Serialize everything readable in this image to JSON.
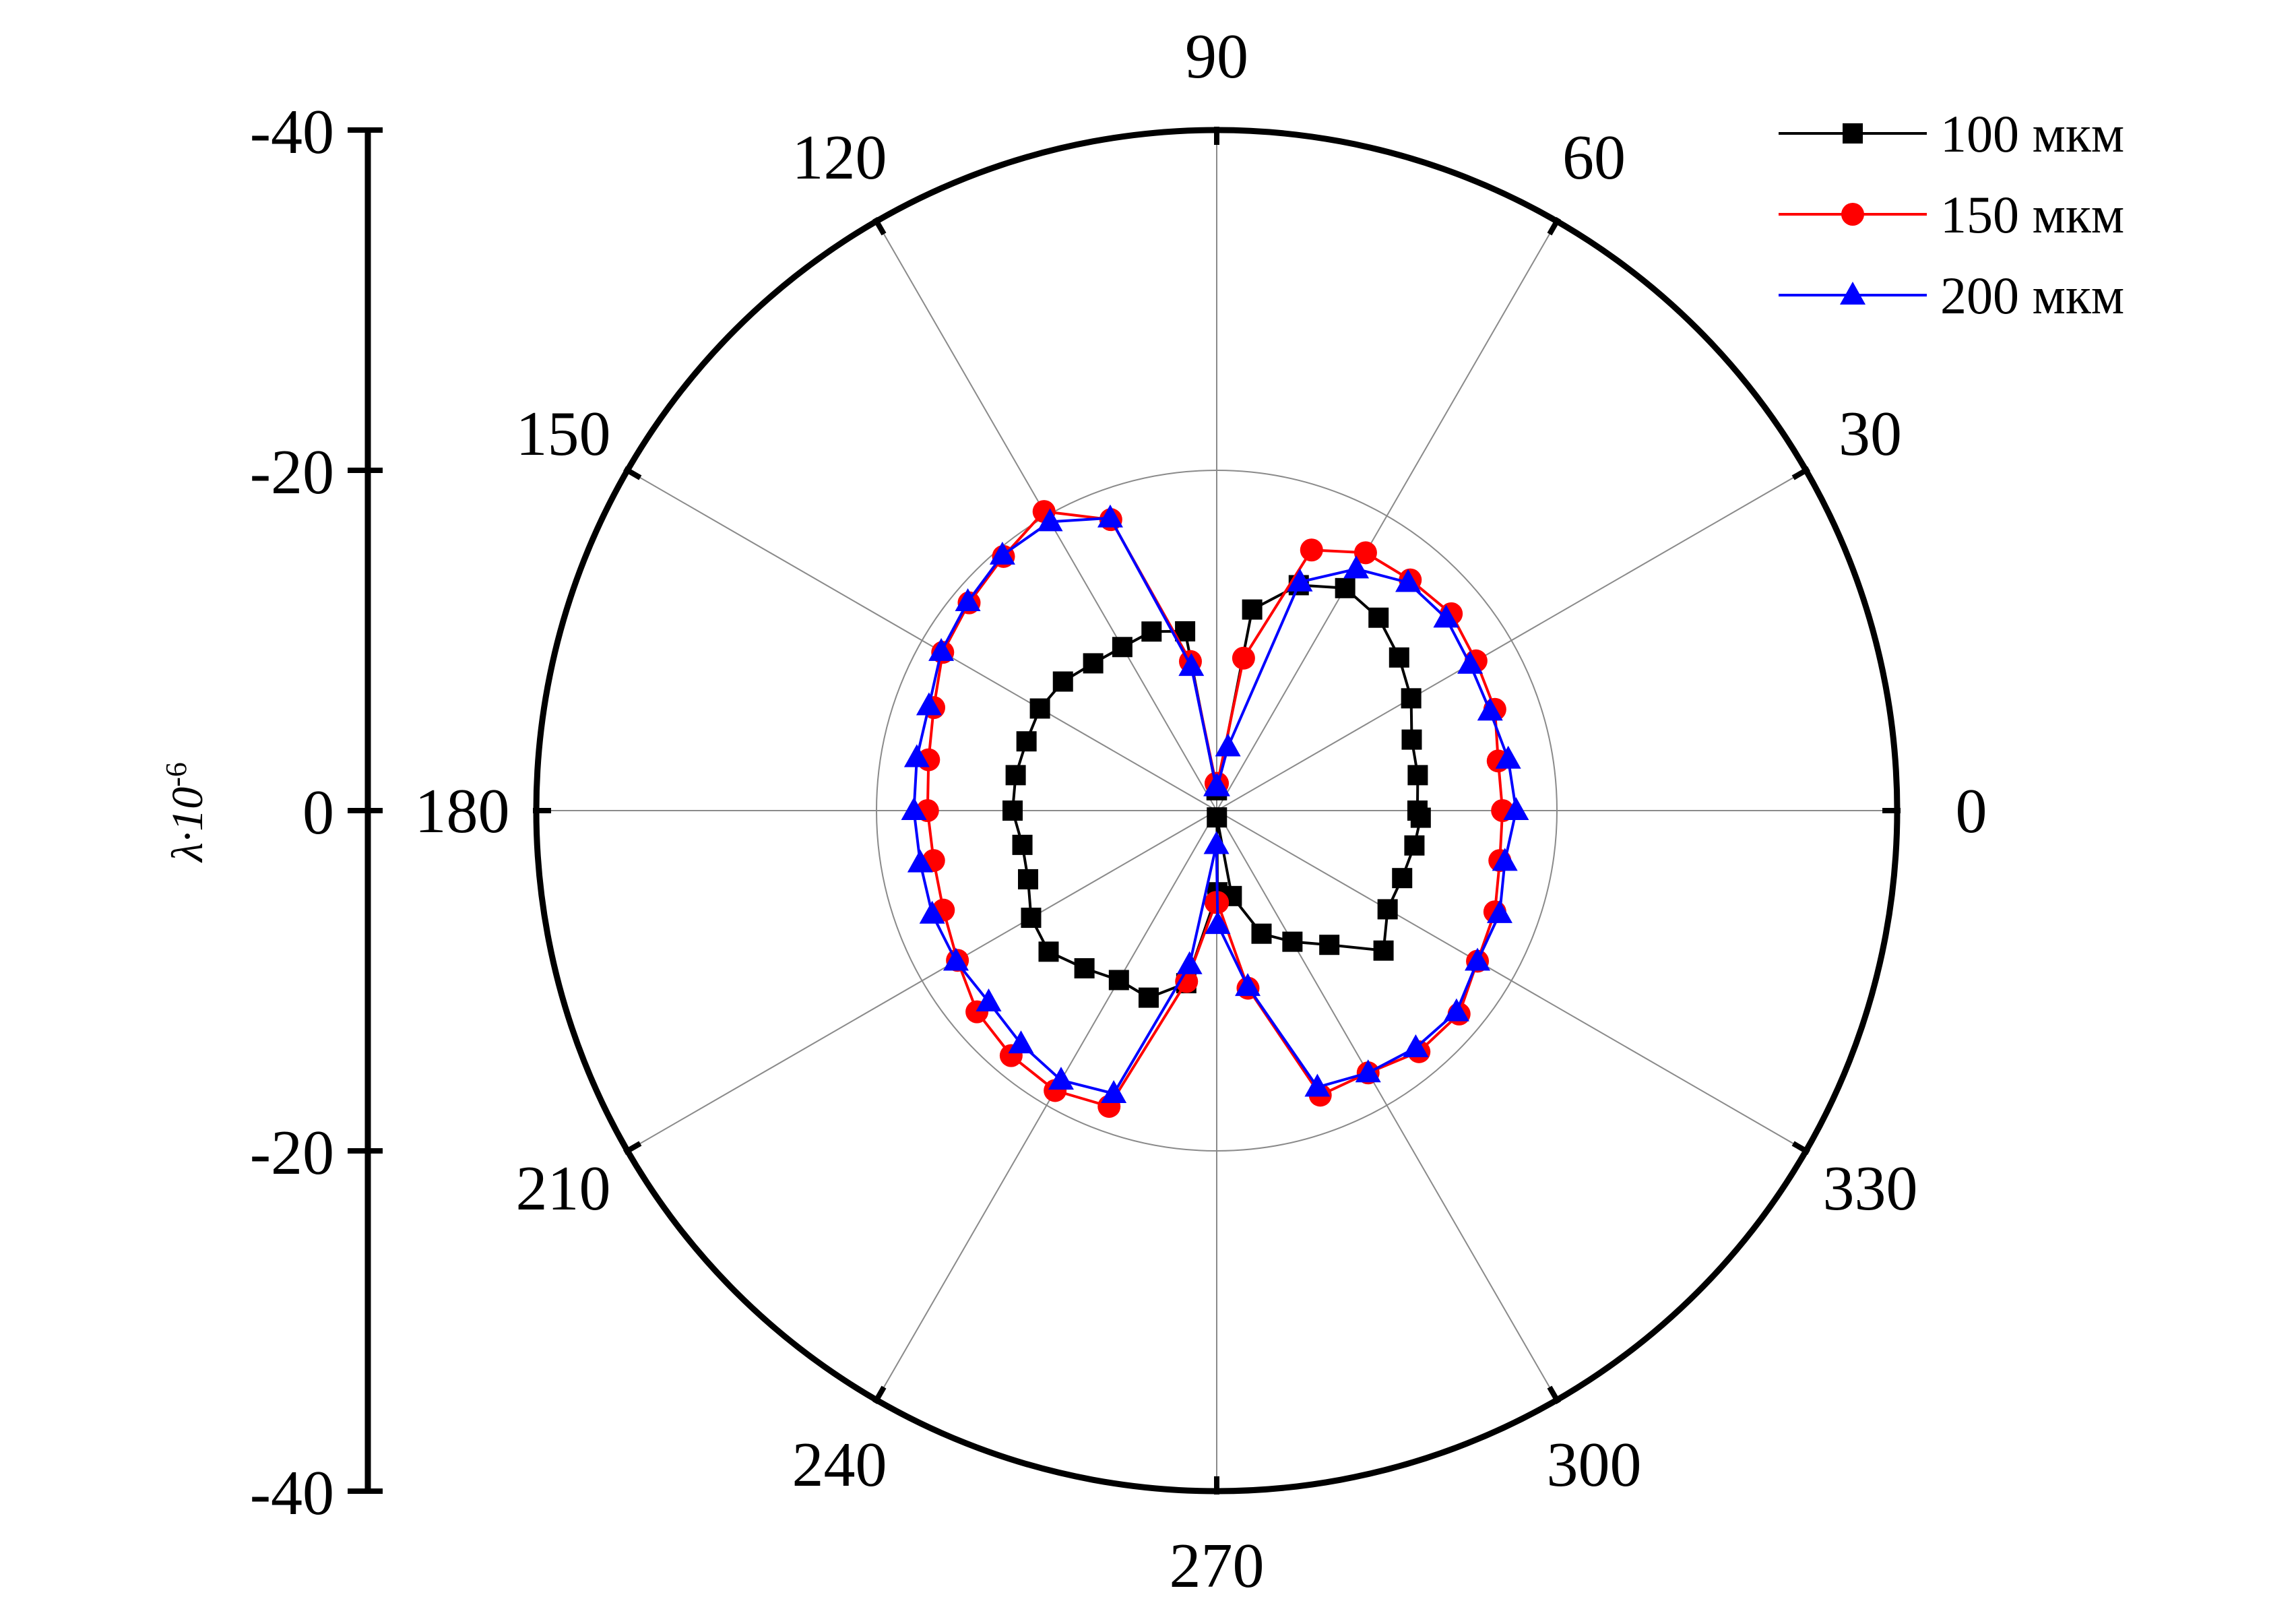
{
  "chart_data": {
    "type": "polar-line",
    "ylabel": "λ·10",
    "ylabel_exponent": "-6",
    "radial_axis": {
      "min": 0,
      "max": 40,
      "ticks": [
        {
          "label": "-40",
          "position": "top"
        },
        {
          "label": "-20",
          "position": "upper"
        },
        {
          "label": "0",
          "position": "center"
        },
        {
          "label": "-20",
          "position": "lower"
        },
        {
          "label": "-40",
          "position": "bottom"
        }
      ]
    },
    "angle_labels": [
      "0",
      "30",
      "60",
      "90",
      "120",
      "150",
      "180",
      "210",
      "240",
      "270",
      "300",
      "330"
    ],
    "angle_ticks": [
      0,
      30,
      60,
      90,
      120,
      150,
      180,
      210,
      240,
      270,
      300,
      330
    ],
    "grid": true,
    "legend_position": "top-right",
    "series": [
      {
        "name": "100 мкм",
        "color": "#000000",
        "marker": "square",
        "theta": [
          0,
          10,
          20,
          30,
          40,
          50,
          60,
          70,
          80,
          89.5,
          90.5,
          100,
          110,
          120,
          130,
          140,
          150,
          160,
          170,
          180,
          190,
          200,
          210,
          220,
          230,
          240,
          250,
          260,
          270.5,
          271.5,
          280,
          290,
          300,
          310,
          320,
          330,
          340,
          350,
          358
        ],
        "r": [
          11.8,
          12.0,
          12.2,
          13.2,
          14.0,
          14.8,
          15.1,
          14.1,
          12.0,
          1.2,
          1.2,
          10.7,
          11.2,
          11.1,
          11.3,
          11.8,
          12.0,
          11.9,
          12.0,
          12.0,
          11.6,
          11.8,
          12.6,
          12.9,
          12.1,
          11.5,
          11.7,
          10.3,
          4.8,
          0.4,
          5.1,
          7.7,
          8.9,
          10.3,
          12.8,
          11.6,
          11.6,
          11.8,
          12.0
        ]
      },
      {
        "name": "150 мкм",
        "color": "#ff0000",
        "marker": "circle",
        "theta": [
          0,
          10,
          20,
          30,
          40,
          50,
          60,
          70,
          80,
          88.5,
          91.5,
          100,
          110,
          120,
          130,
          140,
          150,
          160,
          170,
          180,
          190,
          200,
          210,
          220,
          230,
          240,
          250,
          260,
          269.5,
          270.5,
          280,
          290,
          300,
          310,
          320,
          330,
          340,
          350
        ],
        "r": [
          16.8,
          16.8,
          17.4,
          17.6,
          18.0,
          17.7,
          17.5,
          16.3,
          9.1,
          1.6,
          1.6,
          8.9,
          18.2,
          20.3,
          19.5,
          19.0,
          18.6,
          17.7,
          17.2,
          17.0,
          16.9,
          17.1,
          17.6,
          18.4,
          18.8,
          19.0,
          18.5,
          10.2,
          5.4,
          5.4,
          10.6,
          17.8,
          17.8,
          18.5,
          18.6,
          17.7,
          17.4,
          16.9
        ]
      },
      {
        "name": "200 мкм",
        "color": "#0000ff",
        "marker": "triangle",
        "theta": [
          0,
          10,
          20,
          30,
          40,
          50,
          60,
          70,
          80,
          88.5,
          91.5,
          100,
          110,
          120,
          130,
          140,
          150,
          160,
          170,
          180,
          190,
          200,
          210,
          220,
          230,
          240,
          250,
          260,
          269.5,
          270.5,
          280,
          290,
          300,
          310,
          320,
          330,
          340,
          350
        ],
        "r": [
          17.6,
          17.4,
          17.1,
          17.2,
          17.6,
          17.5,
          16.4,
          14.3,
          3.8,
          1.4,
          1.4,
          8.6,
          18.3,
          19.6,
          19.6,
          19.1,
          18.7,
          18.0,
          17.9,
          17.8,
          17.7,
          17.8,
          17.7,
          17.5,
          17.9,
          18.3,
          17.7,
          9.2,
          2.0,
          6.7,
          10.5,
          17.3,
          17.8,
          18.2,
          18.4,
          17.7,
          17.7,
          17.2
        ]
      }
    ]
  }
}
